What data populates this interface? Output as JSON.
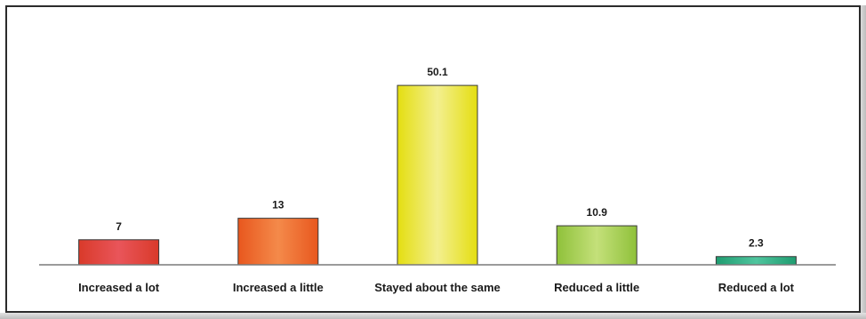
{
  "chart_data": {
    "type": "bar",
    "title": "",
    "xlabel": "",
    "ylabel": "",
    "ylim": [
      0,
      55
    ],
    "grid": false,
    "legend": "none",
    "categories": [
      "Increased a lot",
      "Increased a little",
      "Stayed about the same",
      "Reduced a little",
      "Reduced a lot"
    ],
    "values": [
      7,
      13,
      50.1,
      10.9,
      2.3
    ],
    "value_labels": [
      "7",
      "13",
      "50.1",
      "10.9",
      "2.3"
    ],
    "bar_colors": [
      [
        "#e9555a",
        "#d93a2a"
      ],
      [
        "#f48a4a",
        "#e8571e"
      ],
      [
        "#f3ef8f",
        "#e4de10"
      ],
      [
        "#c4e07a",
        "#8fc13a"
      ],
      [
        "#4fc59e",
        "#1f9c70"
      ]
    ]
  }
}
